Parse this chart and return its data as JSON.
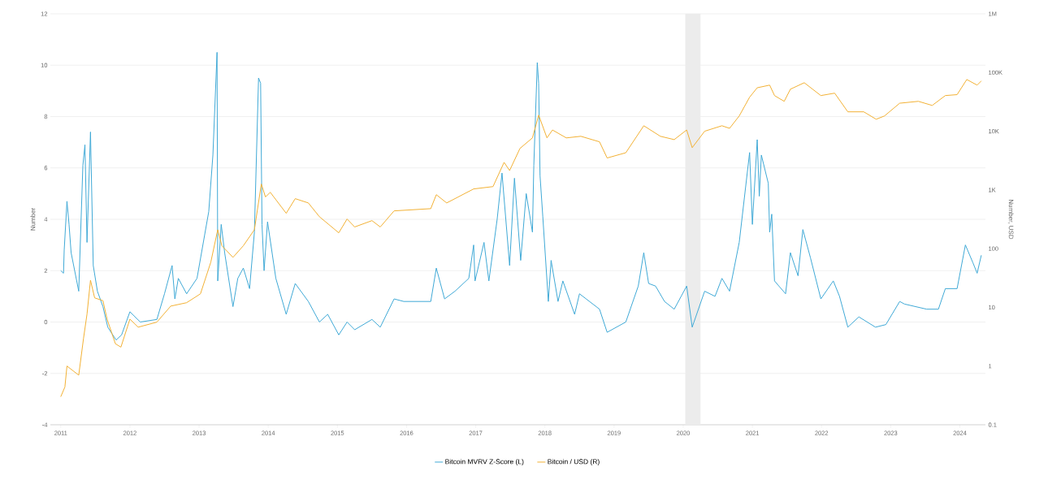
{
  "chart_data": {
    "type": "line",
    "ylabel": "Number",
    "y2label": "Number, USD",
    "xlim": [
      2010.85,
      2024.37
    ],
    "xticks": [
      2011,
      2012,
      2013,
      2014,
      2015,
      2016,
      2017,
      2018,
      2019,
      2020,
      2021,
      2022,
      2023,
      2024
    ],
    "ylim": [
      -4,
      12
    ],
    "yticks": [
      -4,
      -2,
      0,
      2,
      4,
      6,
      8,
      10,
      12
    ],
    "y2lim": [
      0.1,
      1000000
    ],
    "y2ticks": [
      0.1,
      1,
      10,
      100,
      {
        "value": 1000,
        "label": "1K"
      },
      {
        "value": 10000,
        "label": "10K"
      },
      {
        "value": 100000,
        "label": "100K"
      },
      {
        "value": 1000000,
        "label": "1M"
      }
    ],
    "log": "y2",
    "grid": "y",
    "legend": "bottom",
    "bands": [
      {
        "axis": "x",
        "from": 2020.03,
        "to": 2020.25,
        "color": "#ececec"
      }
    ],
    "series": [
      {
        "name": "Bitcoin MVRV Z-Score (L)",
        "color": "#3fa9d6",
        "axis": "y",
        "x": [
          2011.0,
          2011.04,
          2011.05,
          2011.09,
          2011.12,
          2011.15,
          2011.26,
          2011.32,
          2011.35,
          2011.38,
          2011.43,
          2011.47,
          2011.53,
          2011.61,
          2011.68,
          2011.8,
          2011.88,
          2012.0,
          2012.15,
          2012.39,
          2012.5,
          2012.61,
          2012.65,
          2012.7,
          2012.82,
          2012.97,
          2013.14,
          2013.2,
          2013.26,
          2013.27,
          2013.32,
          2013.37,
          2013.49,
          2013.56,
          2013.64,
          2013.73,
          2013.8,
          2013.86,
          2013.89,
          2013.91,
          2013.94,
          2013.99,
          2014.11,
          2014.26,
          2014.39,
          2014.58,
          2014.74,
          2014.86,
          2015.02,
          2015.14,
          2015.25,
          2015.5,
          2015.62,
          2015.82,
          2015.96,
          2016.35,
          2016.43,
          2016.55,
          2016.7,
          2016.9,
          2016.97,
          2016.99,
          2017.12,
          2017.19,
          2017.31,
          2017.38,
          2017.49,
          2017.56,
          2017.65,
          2017.73,
          2017.82,
          2017.84,
          2017.89,
          2017.91,
          2017.93,
          2017.97,
          2018.05,
          2018.09,
          2018.19,
          2018.26,
          2018.43,
          2018.5,
          2018.79,
          2018.9,
          2019.17,
          2019.35,
          2019.43,
          2019.5,
          2019.6,
          2019.73,
          2019.87,
          2019.97,
          2020.05,
          2020.13,
          2020.31,
          2020.46,
          2020.56,
          2020.67,
          2020.81,
          2020.96,
          2021.0,
          2021.07,
          2021.1,
          2021.13,
          2021.23,
          2021.25,
          2021.28,
          2021.32,
          2021.48,
          2021.55,
          2021.66,
          2021.73,
          2021.84,
          2021.99,
          2022.17,
          2022.26,
          2022.38,
          2022.54,
          2022.78,
          2022.93,
          2023.13,
          2023.2,
          2023.52,
          2023.69,
          2023.79,
          2023.96,
          2024.08,
          2024.19,
          2024.25,
          2024.31
        ],
        "values": [
          2.0,
          1.9,
          2.8,
          4.7,
          3.8,
          2.7,
          1.2,
          6.1,
          6.9,
          3.1,
          7.4,
          2.2,
          1.2,
          0.6,
          -0.2,
          -0.7,
          -0.5,
          0.4,
          0.0,
          0.1,
          1.1,
          2.2,
          0.9,
          1.7,
          1.1,
          1.7,
          4.3,
          6.5,
          10.5,
          1.6,
          3.8,
          2.7,
          0.6,
          1.7,
          2.1,
          1.3,
          3.5,
          9.5,
          9.3,
          3.8,
          2.0,
          3.9,
          1.7,
          0.3,
          1.5,
          0.8,
          0.0,
          0.3,
          -0.5,
          0.0,
          -0.3,
          0.1,
          -0.2,
          0.9,
          0.8,
          0.8,
          2.1,
          0.9,
          1.2,
          1.7,
          3.0,
          1.6,
          3.1,
          1.6,
          4.0,
          5.8,
          2.2,
          5.6,
          2.4,
          5.0,
          3.5,
          6.1,
          10.1,
          9.3,
          5.7,
          4.1,
          0.8,
          2.4,
          0.8,
          1.6,
          0.3,
          1.1,
          0.5,
          -0.4,
          0.0,
          1.4,
          2.7,
          1.5,
          1.4,
          0.8,
          0.5,
          1.0,
          1.4,
          -0.2,
          1.2,
          1.0,
          1.7,
          1.2,
          3.1,
          6.6,
          3.8,
          7.1,
          4.9,
          6.5,
          5.4,
          3.5,
          4.2,
          1.6,
          1.1,
          2.7,
          1.8,
          3.6,
          2.5,
          0.9,
          1.6,
          1.0,
          -0.2,
          0.2,
          -0.2,
          -0.1,
          0.8,
          0.7,
          0.5,
          0.5,
          1.3,
          1.3,
          3.0,
          2.3,
          1.9,
          2.6
        ]
      },
      {
        "name": "Bitcoin / USD (R)",
        "color": "#f2b134",
        "axis": "y2",
        "x": [
          2011.0,
          2011.06,
          2011.09,
          2011.26,
          2011.33,
          2011.38,
          2011.43,
          2011.49,
          2011.61,
          2011.67,
          2011.79,
          2011.87,
          2012.0,
          2012.12,
          2012.39,
          2012.59,
          2012.82,
          2013.02,
          2013.17,
          2013.27,
          2013.33,
          2013.49,
          2013.64,
          2013.8,
          2013.9,
          2013.96,
          2014.03,
          2014.26,
          2014.39,
          2014.58,
          2014.74,
          2015.02,
          2015.14,
          2015.25,
          2015.5,
          2015.62,
          2015.82,
          2016.35,
          2016.43,
          2016.58,
          2016.97,
          2017.25,
          2017.41,
          2017.49,
          2017.64,
          2017.82,
          2017.91,
          2018.03,
          2018.11,
          2018.31,
          2018.52,
          2018.79,
          2018.9,
          2019.17,
          2019.43,
          2019.67,
          2019.87,
          2020.05,
          2020.13,
          2020.31,
          2020.56,
          2020.67,
          2020.81,
          2020.96,
          2021.07,
          2021.25,
          2021.32,
          2021.46,
          2021.55,
          2021.75,
          2021.99,
          2022.19,
          2022.38,
          2022.61,
          2022.79,
          2022.91,
          2023.13,
          2023.4,
          2023.6,
          2023.79,
          2023.96,
          2024.1,
          2024.25,
          2024.31
        ],
        "values": [
          0.3,
          0.44,
          1.0,
          0.7,
          3,
          7.7,
          29,
          14.5,
          13,
          6.3,
          2.4,
          2.1,
          6.3,
          4.6,
          5.6,
          10.5,
          12,
          17,
          59,
          210,
          112,
          71,
          112,
          210,
          1260,
          760,
          910,
          400,
          710,
          600,
          350,
          186,
          320,
          234,
          300,
          234,
          440,
          480,
          830,
          600,
          1040,
          1140,
          2950,
          2140,
          5100,
          7700,
          18800,
          7700,
          10500,
          7700,
          8200,
          6600,
          3500,
          4300,
          12400,
          8200,
          7200,
          10500,
          5250,
          10000,
          12400,
          11200,
          18200,
          38000,
          55000,
          61000,
          40500,
          32300,
          52000,
          67000,
          40500,
          44500,
          21400,
          21400,
          16000,
          18200,
          30000,
          32300,
          27500,
          40500,
          42000,
          76000,
          61000,
          72000
        ]
      }
    ]
  }
}
